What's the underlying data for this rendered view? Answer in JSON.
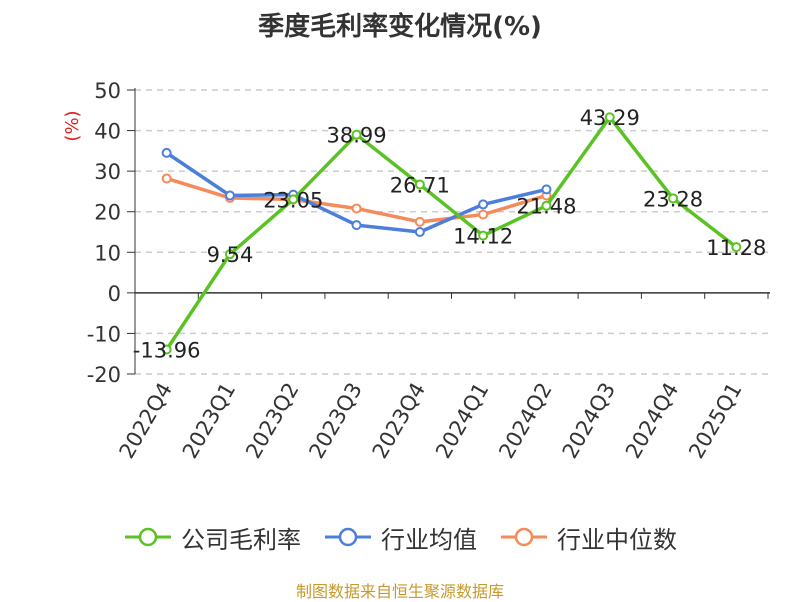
{
  "chart_data": {
    "type": "line",
    "title": "季度毛利率变化情况(%)",
    "ylabel": "(%)",
    "xlabel": "",
    "ylim": [
      -20,
      50
    ],
    "yticks": [
      50,
      40,
      30,
      20,
      10,
      0,
      -10,
      -20
    ],
    "categories": [
      "2022Q4",
      "2023Q1",
      "2023Q2",
      "2023Q3",
      "2023Q4",
      "2024Q1",
      "2024Q2",
      "2024Q3",
      "2024Q4",
      "2025Q1"
    ],
    "grid": true,
    "legend_position": "bottom",
    "series": [
      {
        "name": "公司毛利率",
        "color": "#5ac323",
        "values": [
          -13.96,
          9.54,
          23.05,
          38.99,
          26.71,
          14.12,
          21.48,
          43.29,
          23.28,
          11.28
        ],
        "labels": [
          "-13.96",
          "9.54",
          "23.05",
          "38.99",
          "26.71",
          "14.12",
          "21.48",
          "43.29",
          "23.28",
          "11.28"
        ]
      },
      {
        "name": "行业均值",
        "color": "#4c7fdb",
        "values": [
          34.5,
          24.0,
          24.2,
          16.7,
          15.0,
          21.8,
          25.5,
          null,
          null,
          null
        ]
      },
      {
        "name": "行业中位数",
        "color": "#f58a5a",
        "values": [
          28.2,
          23.4,
          23.0,
          20.8,
          17.5,
          19.3,
          24.0,
          null,
          null,
          null
        ]
      }
    ]
  },
  "footer": "制图数据来自恒生聚源数据库"
}
